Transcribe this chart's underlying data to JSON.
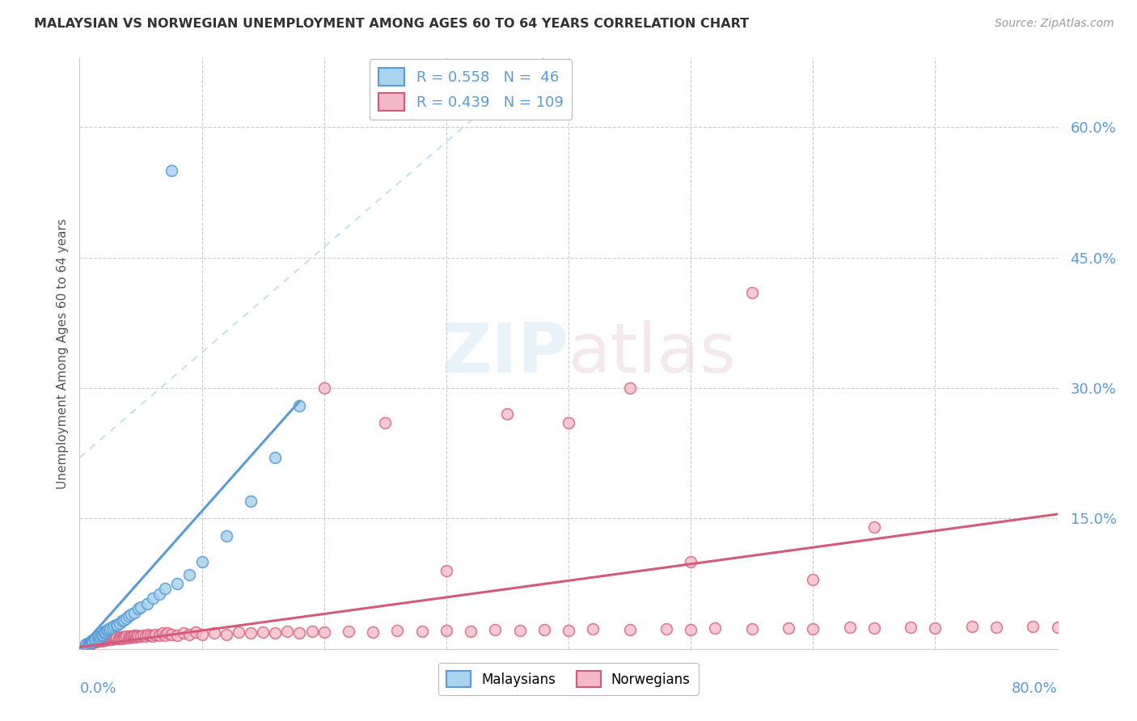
{
  "title": "MALAYSIAN VS NORWEGIAN UNEMPLOYMENT AMONG AGES 60 TO 64 YEARS CORRELATION CHART",
  "source": "Source: ZipAtlas.com",
  "ylabel": "Unemployment Among Ages 60 to 64 years",
  "ylim": [
    0,
    0.68
  ],
  "xlim": [
    0,
    0.8
  ],
  "yticks": [
    0.15,
    0.3,
    0.45,
    0.6
  ],
  "ytick_labels": [
    "15.0%",
    "30.0%",
    "45.0%",
    "60.0%"
  ],
  "color_malaysia_fill": "#A8D4EE",
  "color_malaysia_edge": "#5B9BD5",
  "color_norway_fill": "#F4B8C8",
  "color_norway_edge": "#D45A7A",
  "color_malaysia_line": "#5B9BD5",
  "color_norway_line": "#D45A7A",
  "color_dash": "#A8D4EE",
  "malaysia_x": [
    0.005,
    0.007,
    0.008,
    0.009,
    0.01,
    0.01,
    0.012,
    0.013,
    0.015,
    0.015,
    0.016,
    0.017,
    0.018,
    0.019,
    0.02,
    0.02,
    0.021,
    0.022,
    0.023,
    0.024,
    0.025,
    0.027,
    0.028,
    0.03,
    0.031,
    0.033,
    0.035,
    0.036,
    0.038,
    0.04,
    0.042,
    0.045,
    0.048,
    0.05,
    0.055,
    0.06,
    0.065,
    0.07,
    0.075,
    0.08,
    0.09,
    0.1,
    0.12,
    0.14,
    0.16,
    0.18
  ],
  "malaysia_y": [
    0.005,
    0.006,
    0.007,
    0.008,
    0.008,
    0.01,
    0.01,
    0.012,
    0.012,
    0.015,
    0.013,
    0.015,
    0.016,
    0.017,
    0.018,
    0.02,
    0.019,
    0.021,
    0.022,
    0.023,
    0.024,
    0.025,
    0.027,
    0.028,
    0.028,
    0.03,
    0.032,
    0.033,
    0.035,
    0.038,
    0.04,
    0.042,
    0.046,
    0.048,
    0.052,
    0.058,
    0.063,
    0.07,
    0.55,
    0.075,
    0.085,
    0.1,
    0.13,
    0.17,
    0.22,
    0.28
  ],
  "norway_x": [
    0.005,
    0.007,
    0.008,
    0.009,
    0.01,
    0.01,
    0.011,
    0.012,
    0.013,
    0.014,
    0.015,
    0.015,
    0.016,
    0.017,
    0.018,
    0.018,
    0.019,
    0.02,
    0.02,
    0.021,
    0.022,
    0.023,
    0.024,
    0.025,
    0.026,
    0.027,
    0.028,
    0.029,
    0.03,
    0.03,
    0.032,
    0.033,
    0.034,
    0.035,
    0.036,
    0.037,
    0.038,
    0.04,
    0.041,
    0.042,
    0.043,
    0.044,
    0.045,
    0.046,
    0.047,
    0.048,
    0.05,
    0.052,
    0.054,
    0.056,
    0.058,
    0.06,
    0.062,
    0.065,
    0.068,
    0.07,
    0.072,
    0.075,
    0.08,
    0.085,
    0.09,
    0.095,
    0.1,
    0.11,
    0.12,
    0.13,
    0.14,
    0.15,
    0.16,
    0.17,
    0.18,
    0.19,
    0.2,
    0.22,
    0.24,
    0.26,
    0.28,
    0.3,
    0.32,
    0.34,
    0.36,
    0.38,
    0.4,
    0.42,
    0.45,
    0.48,
    0.5,
    0.52,
    0.55,
    0.58,
    0.6,
    0.63,
    0.65,
    0.68,
    0.7,
    0.73,
    0.75,
    0.78,
    0.8,
    0.35,
    0.3,
    0.25,
    0.2,
    0.55,
    0.45,
    0.65,
    0.4,
    0.5,
    0.6
  ],
  "norway_y": [
    0.005,
    0.006,
    0.007,
    0.005,
    0.007,
    0.008,
    0.008,
    0.009,
    0.008,
    0.009,
    0.009,
    0.01,
    0.01,
    0.011,
    0.009,
    0.011,
    0.01,
    0.011,
    0.012,
    0.01,
    0.011,
    0.012,
    0.011,
    0.012,
    0.011,
    0.013,
    0.012,
    0.013,
    0.012,
    0.014,
    0.012,
    0.013,
    0.014,
    0.012,
    0.014,
    0.013,
    0.015,
    0.013,
    0.015,
    0.014,
    0.015,
    0.014,
    0.016,
    0.014,
    0.016,
    0.015,
    0.015,
    0.016,
    0.015,
    0.017,
    0.016,
    0.015,
    0.017,
    0.016,
    0.018,
    0.016,
    0.018,
    0.017,
    0.016,
    0.018,
    0.017,
    0.019,
    0.017,
    0.018,
    0.017,
    0.019,
    0.018,
    0.019,
    0.018,
    0.02,
    0.018,
    0.02,
    0.019,
    0.02,
    0.019,
    0.021,
    0.02,
    0.021,
    0.02,
    0.022,
    0.021,
    0.022,
    0.021,
    0.023,
    0.022,
    0.023,
    0.022,
    0.024,
    0.023,
    0.024,
    0.023,
    0.025,
    0.024,
    0.025,
    0.024,
    0.026,
    0.025,
    0.026,
    0.025,
    0.27,
    0.09,
    0.26,
    0.3,
    0.41,
    0.3,
    0.14,
    0.26,
    0.1,
    0.08
  ]
}
